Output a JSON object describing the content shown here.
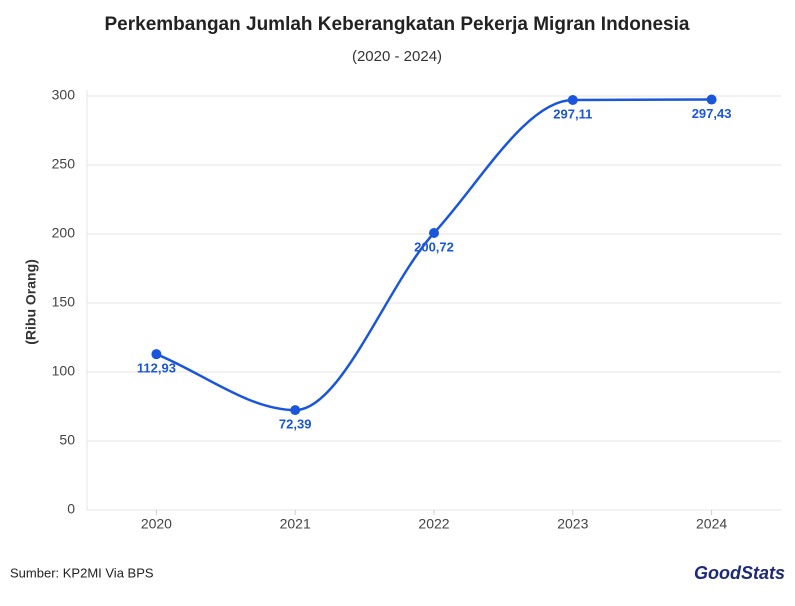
{
  "chart_data": {
    "type": "line",
    "title": "Perkembangan Jumlah Keberangkatan Pekerja Migran Indonesia",
    "subtitle": "(2020 - 2024)",
    "y_label": "(Ribu Orang)",
    "categories": [
      "2020",
      "2021",
      "2022",
      "2023",
      "2024"
    ],
    "series": [
      {
        "name": "Pekerja Migran",
        "color": "#1a56db",
        "values": [
          112.93,
          72.39,
          200.72,
          297.11,
          297.43
        ],
        "value_labels": [
          "112,93",
          "72,39",
          "200,72",
          "297,11",
          "297,43"
        ]
      }
    ],
    "ylim": [
      0,
      300
    ],
    "yticks": [
      0,
      50,
      100,
      150,
      200,
      250,
      300
    ],
    "grid": true,
    "source": "Sumber: KP2MI Via BPS",
    "logo": "GoodStats"
  }
}
